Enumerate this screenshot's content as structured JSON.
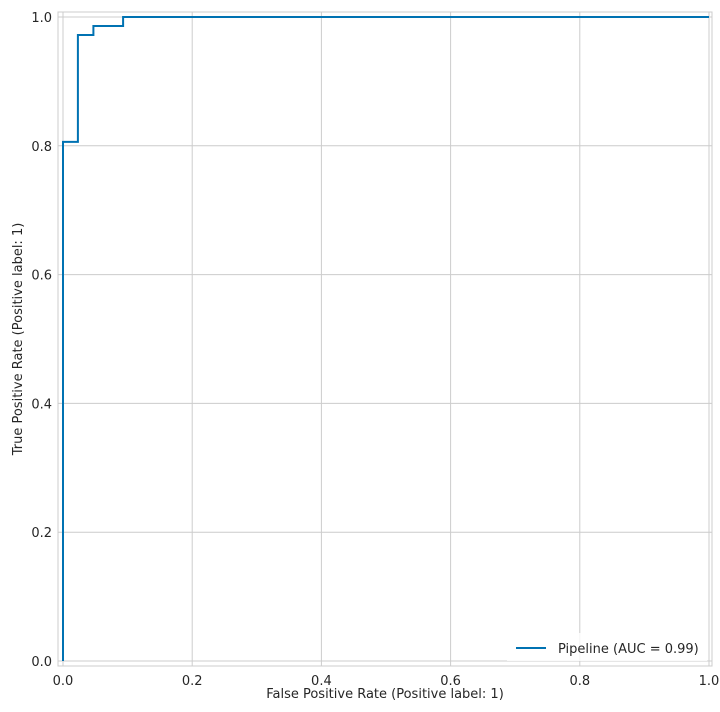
{
  "chart_data": {
    "type": "line",
    "xlabel": "False Positive Rate (Positive label: 1)",
    "ylabel": "True Positive Rate (Positive label: 1)",
    "xlim": [
      0,
      1
    ],
    "ylim": [
      0,
      1
    ],
    "x_ticks": [
      "0.0",
      "0.2",
      "0.4",
      "0.6",
      "0.8",
      "1.0"
    ],
    "y_ticks": [
      "0.0",
      "0.2",
      "0.4",
      "0.6",
      "0.8",
      "1.0"
    ],
    "grid": true,
    "legend_position": "bottom-right",
    "series": [
      {
        "name": "Pipeline (AUC = 0.99)",
        "color": "#0072b2",
        "x": [
          0,
          0,
          0.023,
          0.023,
          0.047,
          0.047,
          0.093,
          0.093,
          1.0
        ],
        "y": [
          0,
          0.806,
          0.806,
          0.972,
          0.972,
          0.986,
          0.986,
          1.0,
          1.0
        ]
      }
    ]
  }
}
